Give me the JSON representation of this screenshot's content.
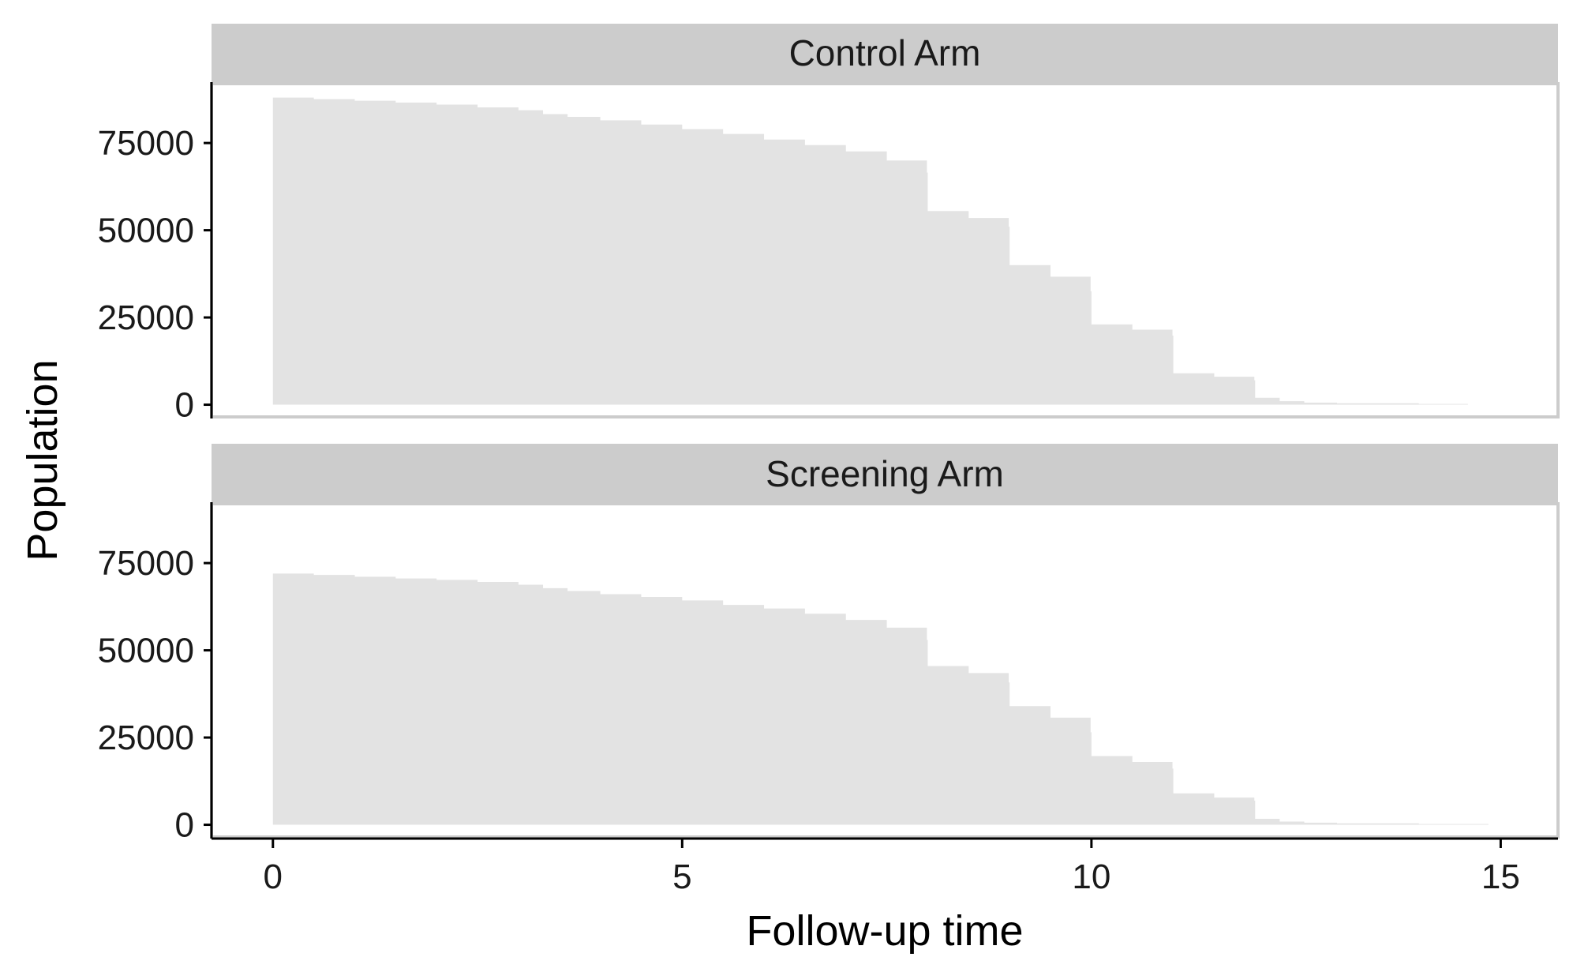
{
  "chart_data": {
    "type": "area",
    "xlabel": "Follow-up time",
    "ylabel": "Population",
    "xlim": [
      -0.75,
      15.7
    ],
    "ylim": [
      -3500,
      92000
    ],
    "x_ticks": [
      0,
      5,
      10,
      15
    ],
    "y_ticks": [
      0,
      25000,
      50000,
      75000
    ],
    "grid": false,
    "fill_color": "#e3e3e3",
    "strip_color": "#cccccc",
    "panels": [
      {
        "name": "Control Arm",
        "series": [
          {
            "x": [
              0,
              0.5,
              1,
              1.5,
              2,
              2.5,
              3,
              3.3,
              3.6,
              4,
              4.5,
              5,
              5.5,
              6,
              6.5,
              7,
              7.5,
              7.99,
              8,
              8.5,
              8.99,
              9,
              9.5,
              9.99,
              10,
              10.5,
              10.99,
              11,
              11.5,
              11.99,
              12,
              12.3,
              12.6,
              13,
              14,
              14.6
            ],
            "values": [
              88000,
              87600,
              87100,
              86600,
              86000,
              85200,
              84400,
              83300,
              82500,
              81500,
              80300,
              79000,
              77600,
              76000,
              74400,
              72600,
              70000,
              66500,
              55500,
              53500,
              51000,
              40000,
              36700,
              32500,
              23000,
              21500,
              19800,
              9000,
              8000,
              7000,
              2000,
              1000,
              600,
              400,
              200,
              0
            ]
          }
        ]
      },
      {
        "name": "Screening Arm",
        "series": [
          {
            "x": [
              0,
              0.5,
              1,
              1.5,
              2,
              2.5,
              3,
              3.3,
              3.6,
              4,
              4.5,
              5,
              5.5,
              6,
              6.5,
              7,
              7.5,
              7.99,
              8,
              8.5,
              8.99,
              9,
              9.5,
              9.99,
              10,
              10.5,
              10.99,
              11,
              11.5,
              11.99,
              12,
              12.3,
              12.6,
              13,
              14,
              14.85
            ],
            "values": [
              72000,
              71600,
              71100,
              70600,
              70200,
              69600,
              68800,
              67800,
              67000,
              66100,
              65300,
              64300,
              63000,
              62000,
              60500,
              58700,
              56500,
              53000,
              45500,
              43500,
              40800,
              34000,
              30700,
              26500,
              19700,
              18000,
              16100,
              9000,
              7800,
              6900,
              1700,
              900,
              600,
              400,
              200,
              0
            ]
          }
        ]
      }
    ]
  }
}
